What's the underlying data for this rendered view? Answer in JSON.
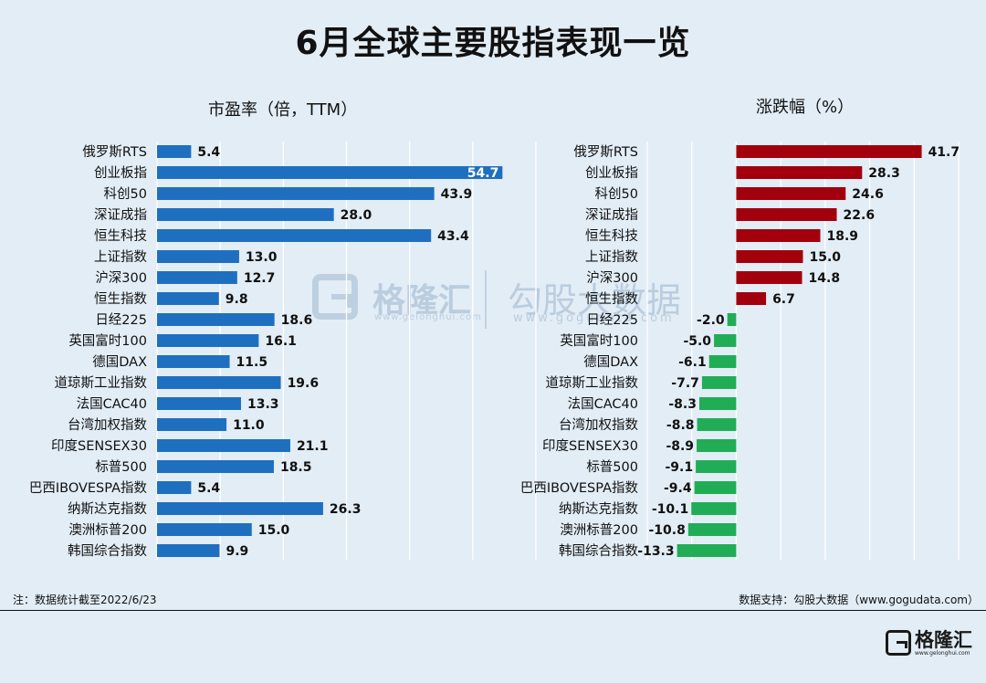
{
  "title": "6月全球主要股指表现一览",
  "footer": {
    "note": "注：数据统计截至2022/6/23",
    "source": "数据支持：勾股大数据（www.gogudata.com）"
  },
  "watermark": {
    "brand_name": "格隆汇",
    "brand_url": "www.gelonghui.com",
    "data_name": "勾股大数据",
    "data_url": "www.gogudata.com"
  },
  "bottom_logo": {
    "name": "格隆汇",
    "url": "www.gelonghui.com"
  },
  "colors": {
    "pe_bar": "#1f6fc1",
    "up_bar": "#a3000d",
    "down_bar": "#21ad56",
    "grid": "#ffffff",
    "background": "#e2edf6"
  },
  "chart_data": [
    {
      "type": "bar",
      "orientation": "horizontal",
      "title": "市盈率（倍，TTM）",
      "categories": [
        "俄罗斯RTS",
        "创业板指",
        "科创50",
        "深证成指",
        "恒生科技",
        "上证指数",
        "沪深300",
        "恒生指数",
        "日经225",
        "英国富时100",
        "德国DAX",
        "道琼斯工业指数",
        "法国CAC40",
        "台湾加权指数",
        "印度SENSEX30",
        "标普500",
        "巴西IBOVESPA指数",
        "纳斯达克指数",
        "澳洲标普200",
        "韩国综合指数"
      ],
      "values": [
        5.4,
        54.7,
        43.9,
        28.0,
        43.4,
        13.0,
        12.7,
        9.8,
        18.6,
        16.1,
        11.5,
        19.6,
        13.3,
        11.0,
        21.1,
        18.5,
        5.4,
        26.3,
        15.0,
        9.9
      ],
      "value_labels": [
        "5.4",
        "54.7",
        "43.9",
        "28.0",
        "43.4",
        "13.0",
        "12.7",
        "9.8",
        "18.6",
        "16.1",
        "11.5",
        "19.6",
        "13.3",
        "11.0",
        "21.1",
        "18.5",
        "5.4",
        "26.3",
        "15.0",
        "9.9"
      ],
      "xlim": [
        0,
        60
      ],
      "grid": true
    },
    {
      "type": "bar",
      "orientation": "horizontal",
      "title": "涨跌幅（%）",
      "categories": [
        "俄罗斯RTS",
        "创业板指",
        "科创50",
        "深证成指",
        "恒生科技",
        "上证指数",
        "沪深300",
        "恒生指数",
        "日经225",
        "英国富时100",
        "德国DAX",
        "道琼斯工业指数",
        "法国CAC40",
        "台湾加权指数",
        "印度SENSEX30",
        "标普500",
        "巴西IBOVESPA指数",
        "纳斯达克指数",
        "澳洲标普200",
        "韩国综合指数"
      ],
      "values": [
        41.7,
        28.3,
        24.6,
        22.6,
        18.9,
        15.0,
        14.8,
        6.7,
        -2.0,
        -5.0,
        -6.1,
        -7.7,
        -8.3,
        -8.8,
        -8.9,
        -9.1,
        -9.4,
        -10.1,
        -10.8,
        -13.3
      ],
      "value_labels": [
        "41.7",
        "28.3",
        "24.6",
        "22.6",
        "18.9",
        "15.0",
        "14.8",
        "6.7",
        "-2.0",
        "-5.0",
        "-6.1",
        "-7.7",
        "-8.3",
        "-8.8",
        "-8.9",
        "-9.1",
        "-9.4",
        "-10.1",
        "-10.8",
        "-13.3"
      ],
      "xlim": [
        -20,
        50
      ],
      "grid": true
    }
  ]
}
